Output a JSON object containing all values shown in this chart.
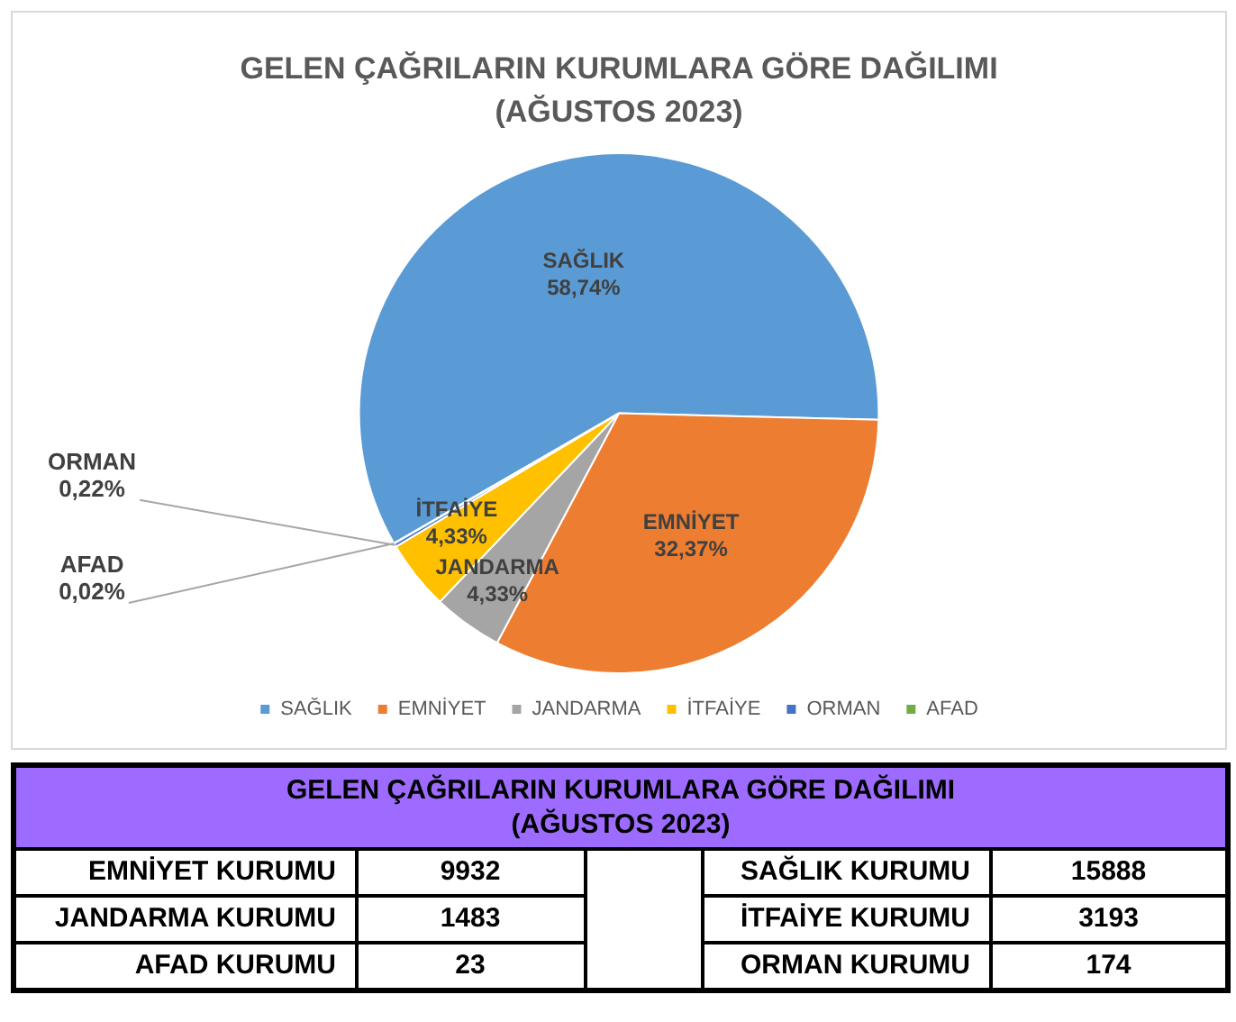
{
  "chart_data": [
    {
      "type": "pie",
      "title": "GELEN ÇAĞRILARIN KURUMLARA GÖRE DAĞILIMI\n(AĞUSTOS 2023)",
      "categories": [
        "SAĞLIK",
        "EMNİYET",
        "JANDARMA",
        "İTFAİYE",
        "ORMAN",
        "AFAD"
      ],
      "values": [
        58.74,
        32.37,
        4.33,
        4.33,
        0.22,
        0.02
      ],
      "value_labels": [
        "58,74%",
        "32,37%",
        "4,33%",
        "4,33%",
        "0,22%",
        "0,02%"
      ],
      "colors": [
        "#5b9bd5",
        "#ed7d31",
        "#a5a5a5",
        "#ffc000",
        "#4472c4",
        "#70ad47"
      ],
      "legend": "bottom"
    },
    {
      "type": "other",
      "title": "GELEN ÇAĞRILARIN KURUMLARA GÖRE DAĞILIMI\n(AĞUSTOS 2023)",
      "categories": [
        "EMNİYET KURUMU",
        "SAĞLIK KURUMU",
        "JANDARMA KURUMU",
        "İTFAİYE KURUMU",
        "AFAD KURUMU",
        "ORMAN KURUMU"
      ],
      "values": [
        9932,
        15888,
        1483,
        3193,
        23,
        174
      ],
      "data_labels": true
    }
  ]
}
